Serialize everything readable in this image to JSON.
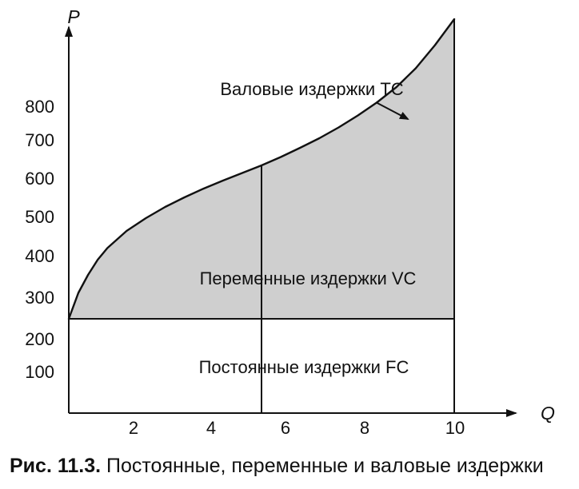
{
  "figure": {
    "caption_number": "Рис. 11.3.",
    "caption_text": " Постоянные, переменные и валовые издержки"
  },
  "chart_data": {
    "type": "area",
    "y_axis_label": "P",
    "x_axis_label": "Q",
    "x_ticks": [
      "2",
      "4",
      "6",
      "8",
      "10"
    ],
    "y_ticks": [
      "100",
      "200",
      "300",
      "400",
      "500",
      "600",
      "700",
      "800"
    ],
    "xlim": [
      0,
      10.2
    ],
    "ylim": [
      0,
      900
    ],
    "fixed_cost_value": 220,
    "marked_quantities": [
      5,
      10
    ],
    "total_cost_curve": {
      "x": [
        0,
        0.25,
        0.5,
        0.75,
        1,
        1.5,
        2,
        2.5,
        3,
        3.5,
        4,
        4.5,
        5,
        5.5,
        6,
        6.5,
        7,
        7.5,
        8,
        8.5,
        9,
        9.5,
        10
      ],
      "y": [
        220,
        285,
        330,
        368,
        397,
        440,
        472,
        500,
        524,
        546,
        566,
        585,
        604,
        625,
        648,
        672,
        699,
        729,
        762,
        800,
        847,
        905,
        970
      ]
    },
    "annotations": {
      "total_cost": "Валовые издержки TC",
      "variable_cost": "Переменные издержки VC",
      "fixed_cost": "Постоянные издержки FC"
    },
    "colors": {
      "variable_cost_fill": "#cfcfcf",
      "line": "#111111"
    }
  }
}
